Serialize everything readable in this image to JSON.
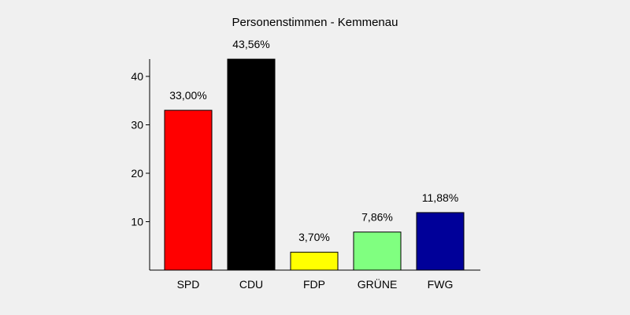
{
  "chart_data": {
    "type": "bar",
    "title": "Personenstimmen - Kemmenau",
    "xlabel": "",
    "ylabel": "",
    "categories": [
      "SPD",
      "CDU",
      "FDP",
      "GRÜNE",
      "FWG"
    ],
    "values": [
      33.0,
      43.56,
      3.7,
      7.86,
      11.88
    ],
    "value_labels": [
      "33,00%",
      "43,56%",
      "3,70%",
      "7,86%",
      "11,88%"
    ],
    "colors": [
      "#ff0000",
      "#000000",
      "#ffff00",
      "#80ff80",
      "#000099"
    ],
    "ylim": [
      0,
      44
    ],
    "yticks": [
      10,
      20,
      30,
      40
    ],
    "ytick_labels": [
      "10",
      "20",
      "30",
      "40"
    ],
    "grid": false,
    "legend": "none"
  }
}
